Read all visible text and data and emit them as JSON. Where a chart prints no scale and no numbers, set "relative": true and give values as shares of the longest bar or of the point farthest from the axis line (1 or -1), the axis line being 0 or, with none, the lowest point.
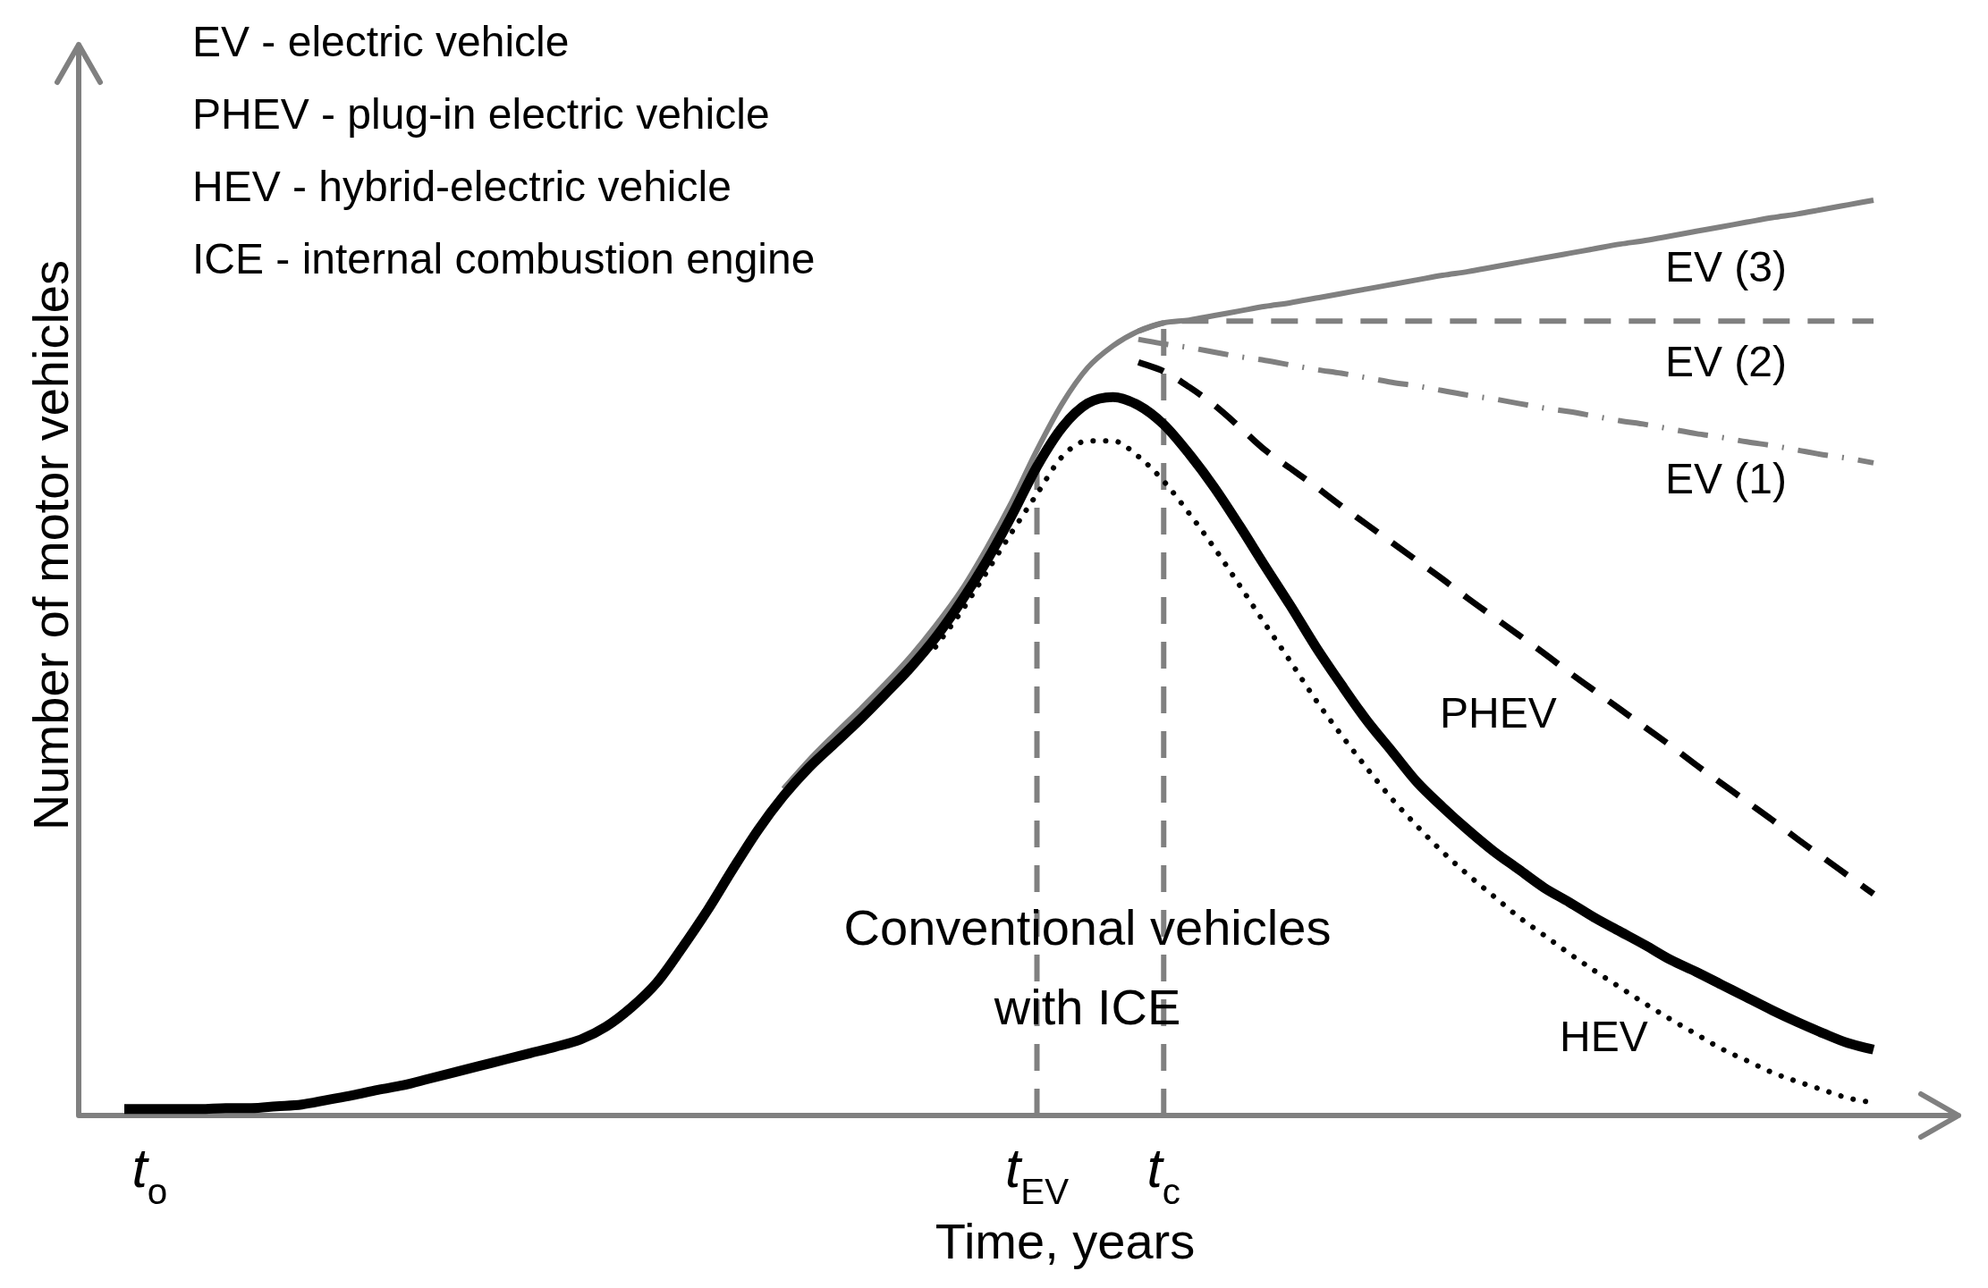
{
  "chart_data": {
    "type": "line",
    "relative": true,
    "xlabel": "Time, years",
    "ylabel": "Number of motor vehicles",
    "categories": [
      null,
      "t$_{o}$",
      null,
      null,
      null,
      null,
      null,
      null,
      null,
      null,
      null,
      null,
      null,
      null,
      null,
      null,
      null,
      null,
      null,
      null,
      null,
      null,
      null,
      null,
      null,
      null,
      null,
      null,
      null,
      null,
      null,
      null,
      null,
      null,
      null,
      null,
      "t$_{EV}$",
      null,
      null,
      null,
      null,
      "t$_{c}$",
      null,
      null,
      null,
      null,
      null,
      null,
      null,
      null,
      null,
      null,
      null,
      null,
      null,
      null,
      null,
      null,
      null,
      null,
      null,
      null,
      null,
      null,
      null,
      null,
      null,
      null,
      null,
      null
    ],
    "series": [
      {
        "name": "Conventional vehicles with ICE",
        "color": "#000000",
        "line_style": "solid",
        "values": [
          0.007,
          0.007,
          0.007,
          0.007,
          0.008,
          0.008,
          0.01,
          0.012,
          0.017,
          0.022,
          0.028,
          0.033,
          0.04,
          0.047,
          0.054,
          0.061,
          0.068,
          0.075,
          0.083,
          0.097,
          0.118,
          0.145,
          0.183,
          0.224,
          0.269,
          0.312,
          0.349,
          0.38,
          0.406,
          0.432,
          0.46,
          0.489,
          0.522,
          0.561,
          0.605,
          0.655,
          0.709,
          0.752,
          0.778,
          0.785,
          0.776,
          0.755,
          0.723,
          0.686,
          0.644,
          0.6,
          0.557,
          0.512,
          0.471,
          0.432,
          0.398,
          0.364,
          0.337,
          0.312,
          0.289,
          0.269,
          0.249,
          0.233,
          0.216,
          0.201,
          0.186,
          0.17,
          0.157,
          0.143,
          0.129,
          0.115,
          0.102,
          0.09,
          0.079,
          0.072
        ]
      },
      {
        "name": "PHEV",
        "color": "#000000",
        "line_style": "dashed",
        "values": [
          null,
          null,
          null,
          null,
          null,
          null,
          null,
          null,
          null,
          null,
          null,
          null,
          null,
          null,
          null,
          null,
          null,
          null,
          null,
          null,
          null,
          null,
          null,
          null,
          null,
          null,
          null,
          null,
          null,
          null,
          null,
          null,
          null,
          null,
          null,
          null,
          null,
          null,
          null,
          null,
          0.823,
          0.813,
          0.796,
          0.776,
          0.752,
          0.727,
          0.707,
          0.687,
          0.666,
          0.646,
          0.626,
          0.606,
          0.586,
          0.565,
          0.545,
          0.525,
          0.505,
          0.484,
          0.464,
          0.444,
          0.424,
          0.404,
          0.383,
          0.363,
          0.343,
          0.323,
          0.302,
          0.282,
          0.262,
          0.242
        ]
      },
      {
        "name": "HEV",
        "color": "#000000",
        "line_style": "dotted",
        "values": [
          null,
          null,
          null,
          null,
          null,
          null,
          null,
          null,
          null,
          null,
          null,
          null,
          null,
          null,
          null,
          null,
          null,
          null,
          null,
          null,
          null,
          null,
          null,
          null,
          null,
          null,
          null,
          null,
          null,
          null,
          null,
          null,
          0.512,
          0.55,
          0.593,
          0.637,
          0.679,
          0.72,
          0.737,
          0.737,
          0.72,
          0.693,
          0.658,
          0.62,
          0.579,
          0.537,
          0.496,
          0.454,
          0.416,
          0.38,
          0.346,
          0.316,
          0.288,
          0.263,
          0.24,
          0.217,
          0.197,
          0.177,
          0.158,
          0.14,
          0.122,
          0.105,
          0.089,
          0.073,
          0.06,
          0.047,
          0.037,
          0.028,
          0.019,
          0.014
        ]
      },
      {
        "name": "EV (3)",
        "color": "#808080",
        "line_style": "solid",
        "values": [
          null,
          null,
          null,
          null,
          null,
          null,
          null,
          null,
          null,
          null,
          null,
          null,
          null,
          null,
          null,
          null,
          null,
          null,
          null,
          null,
          null,
          null,
          null,
          null,
          null,
          null,
          0.357,
          0.388,
          0.416,
          0.443,
          0.471,
          0.501,
          0.535,
          0.573,
          0.619,
          0.67,
          0.727,
          0.778,
          0.817,
          0.841,
          0.857,
          0.866,
          0.869,
          0.874,
          0.879,
          0.884,
          0.888,
          0.893,
          0.898,
          0.903,
          0.908,
          0.913,
          0.918,
          0.922,
          0.927,
          0.932,
          0.937,
          0.942,
          0.947,
          0.952,
          0.956,
          0.961,
          0.966,
          0.971,
          0.976,
          0.981,
          0.985,
          0.99,
          0.995,
          1
        ]
      },
      {
        "name": "EV (2)",
        "color": "#808080",
        "line_style": "dashed",
        "values": [
          null,
          null,
          null,
          null,
          null,
          null,
          null,
          null,
          null,
          null,
          null,
          null,
          null,
          null,
          null,
          null,
          null,
          null,
          null,
          null,
          null,
          null,
          null,
          null,
          null,
          null,
          null,
          null,
          null,
          null,
          null,
          null,
          null,
          null,
          null,
          null,
          null,
          null,
          null,
          null,
          0.857,
          0.866,
          0.868,
          0.868,
          0.868,
          0.868,
          0.868,
          0.868,
          0.868,
          0.868,
          0.868,
          0.868,
          0.868,
          0.868,
          0.868,
          0.868,
          0.868,
          0.868,
          0.868,
          0.868,
          0.868,
          0.868,
          0.868,
          0.868,
          0.868,
          0.868,
          0.868,
          0.868,
          0.868,
          0.868
        ]
      },
      {
        "name": "EV (1)",
        "color": "#808080",
        "line_style": "dashdot",
        "values": [
          null,
          null,
          null,
          null,
          null,
          null,
          null,
          null,
          null,
          null,
          null,
          null,
          null,
          null,
          null,
          null,
          null,
          null,
          null,
          null,
          null,
          null,
          null,
          null,
          null,
          null,
          null,
          null,
          null,
          null,
          null,
          null,
          null,
          null,
          null,
          null,
          null,
          null,
          null,
          null,
          0.848,
          0.843,
          0.839,
          0.834,
          0.829,
          0.825,
          0.82,
          0.815,
          0.811,
          0.806,
          0.801,
          0.797,
          0.792,
          0.787,
          0.783,
          0.778,
          0.773,
          0.769,
          0.764,
          0.759,
          0.755,
          0.75,
          0.745,
          0.741,
          0.736,
          0.732,
          0.727,
          0.722,
          0.718,
          0.713
        ]
      }
    ],
    "ref_lines": [
      {
        "axis": "x",
        "value": "t$_{EV}$",
        "color": "#808080",
        "line_style": "dashed"
      },
      {
        "axis": "x",
        "value": "t$_{c}$",
        "color": "#808080",
        "line_style": "dashed"
      }
    ],
    "annotations": [
      "EV - electric vehicle",
      "PHEV - plug-in electric vehicle",
      "HEV - hybrid-electric vehicle",
      "ICE - internal combustion engine"
    ],
    "legend": false,
    "marker": "none"
  }
}
